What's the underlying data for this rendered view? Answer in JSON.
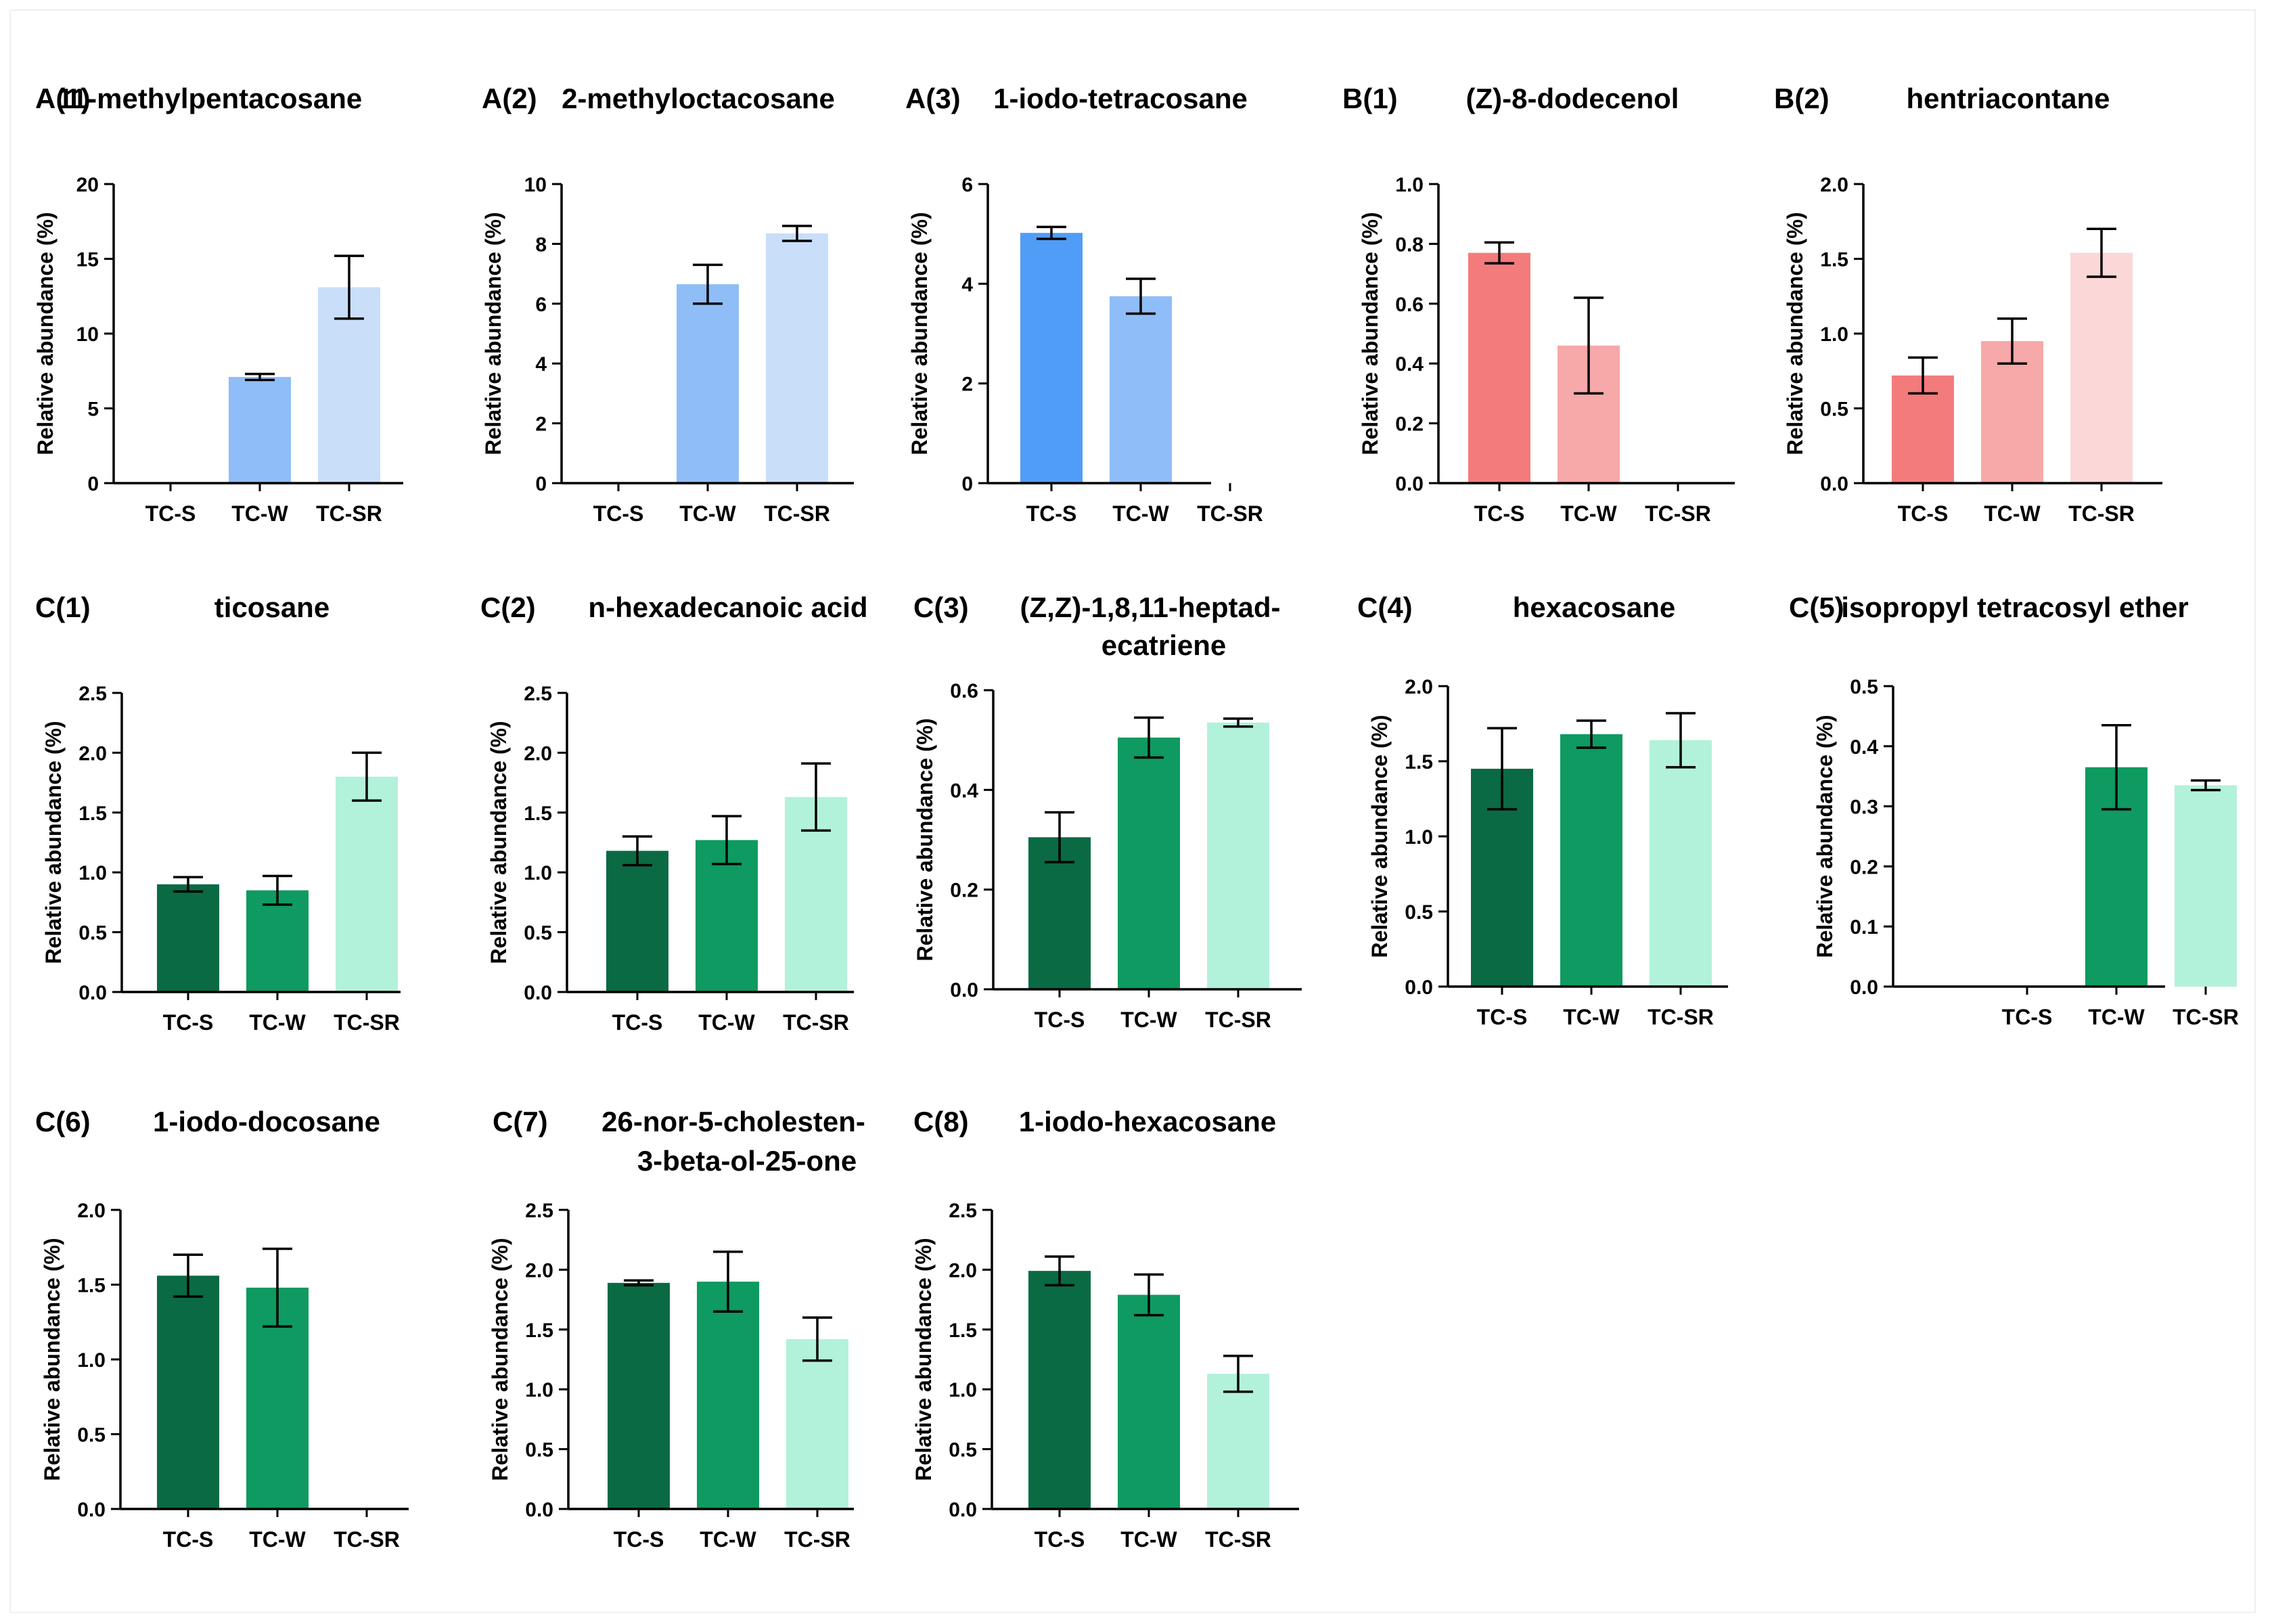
{
  "chart_data": [
    {
      "panel": "A(1)",
      "title": "11-methylpentacosane",
      "type": "bar",
      "categories": [
        "TC-S",
        "TC-W",
        "TC-SR"
      ],
      "values": [
        0,
        7.1,
        13.1
      ],
      "errors": [
        0,
        0.2,
        2.1
      ],
      "colors": [
        "#4f9df7",
        "#8fbdf7",
        "#c9def9"
      ],
      "ylabel": "Relative abundance (%)",
      "ylim": [
        0,
        20
      ],
      "yticks": [
        "0",
        "5",
        "10",
        "15",
        "20"
      ]
    },
    {
      "panel": "A(2)",
      "title": "2-methyloctacosane",
      "type": "bar",
      "categories": [
        "TC-S",
        "TC-W",
        "TC-SR"
      ],
      "values": [
        0,
        6.65,
        8.35
      ],
      "errors": [
        0,
        0.65,
        0.25
      ],
      "colors": [
        "#4f9df7",
        "#8fbdf7",
        "#c9def9"
      ],
      "ylabel": "Relative abundance (%)",
      "ylim": [
        0,
        10
      ],
      "yticks": [
        "0",
        "2",
        "4",
        "6",
        "8",
        "10"
      ]
    },
    {
      "panel": "A(3)",
      "title": "1-iodo-tetracosane",
      "type": "bar",
      "categories": [
        "TC-S",
        "TC-W",
        "TC-SR"
      ],
      "values": [
        5.02,
        3.75,
        0
      ],
      "errors": [
        0.12,
        0.35,
        0
      ],
      "colors": [
        "#4f9df7",
        "#8fbdf7",
        "#c9def9"
      ],
      "ylabel": "Relative abundance (%)",
      "ylim": [
        0,
        6
      ],
      "yticks": [
        "0",
        "2",
        "4",
        "6"
      ]
    },
    {
      "panel": "B(1)",
      "title": "(Z)-8-dodecenol",
      "type": "bar",
      "categories": [
        "TC-S",
        "TC-W",
        "TC-SR"
      ],
      "values": [
        0.77,
        0.46,
        0
      ],
      "errors": [
        0.035,
        0.16,
        0
      ],
      "colors": [
        "#f47b7b",
        "#f7a8a8",
        "#fbd7d7"
      ],
      "ylabel": "Relative abundance (%)",
      "ylim": [
        0,
        1.0
      ],
      "yticks": [
        "0.0",
        "0.2",
        "0.4",
        "0.6",
        "0.8",
        "1.0"
      ]
    },
    {
      "panel": "B(2)",
      "title": "hentriacontane",
      "type": "bar",
      "categories": [
        "TC-S",
        "TC-W",
        "TC-SR"
      ],
      "values": [
        0.72,
        0.95,
        1.54
      ],
      "errors": [
        0.12,
        0.15,
        0.16
      ],
      "colors": [
        "#f47b7b",
        "#f7a8a8",
        "#fbd7d7"
      ],
      "ylabel": "Relative abundance (%)",
      "ylim": [
        0,
        2.0
      ],
      "yticks": [
        "0.0",
        "0.5",
        "1.0",
        "1.5",
        "2.0"
      ]
    },
    {
      "panel": "C(1)",
      "title": "ticosane",
      "type": "bar",
      "categories": [
        "TC-S",
        "TC-W",
        "TC-SR"
      ],
      "values": [
        0.9,
        0.85,
        1.8
      ],
      "errors": [
        0.06,
        0.12,
        0.2
      ],
      "colors": [
        "#0a6a43",
        "#0e9a61",
        "#b2f2da"
      ],
      "ylabel": "Relative abundance (%)",
      "ylim": [
        0,
        2.5
      ],
      "yticks": [
        "0.0",
        "0.5",
        "1.0",
        "1.5",
        "2.0",
        "2.5"
      ]
    },
    {
      "panel": "C(2)",
      "title": "n-hexadecanoic acid",
      "type": "bar",
      "categories": [
        "TC-S",
        "TC-W",
        "TC-SR"
      ],
      "values": [
        1.18,
        1.27,
        1.63
      ],
      "errors": [
        0.12,
        0.2,
        0.28
      ],
      "colors": [
        "#0a6a43",
        "#0e9a61",
        "#b2f2da"
      ],
      "ylabel": "Relative abundance (%)",
      "ylim": [
        0,
        2.5
      ],
      "yticks": [
        "0.0",
        "0.5",
        "1.0",
        "1.5",
        "2.0",
        "2.5"
      ]
    },
    {
      "panel": "C(3)",
      "title": "(Z,Z)-1,8,11-heptad-",
      "title2": "ecatriene",
      "type": "bar",
      "categories": [
        "TC-S",
        "TC-W",
        "TC-SR"
      ],
      "values": [
        0.305,
        0.505,
        0.535
      ],
      "errors": [
        0.05,
        0.04,
        0.008
      ],
      "colors": [
        "#0a6a43",
        "#0e9a61",
        "#b2f2da"
      ],
      "ylabel": "Relative abundance (%)",
      "ylim": [
        0,
        0.6
      ],
      "yticks": [
        "0.0",
        "0.2",
        "0.4",
        "0.6"
      ]
    },
    {
      "panel": "C(4)",
      "title": "hexacosane",
      "type": "bar",
      "categories": [
        "TC-S",
        "TC-W",
        "TC-SR"
      ],
      "values": [
        1.45,
        1.68,
        1.64
      ],
      "errors": [
        0.27,
        0.09,
        0.18
      ],
      "colors": [
        "#0a6a43",
        "#0e9a61",
        "#b2f2da"
      ],
      "ylabel": "Relative abundance (%)",
      "ylim": [
        0,
        2.0
      ],
      "yticks": [
        "0.0",
        "0.5",
        "1.0",
        "1.5",
        "2.0"
      ]
    },
    {
      "panel": "C(5)",
      "title": "isopropyl tetracosyl ether",
      "type": "bar",
      "categories": [
        "TC-S",
        "TC-W",
        "TC-SR"
      ],
      "values": [
        0,
        0.365,
        0.335
      ],
      "errors": [
        0,
        0.07,
        0.008
      ],
      "colors": [
        "#0a6a43",
        "#0e9a61",
        "#b2f2da"
      ],
      "ylabel": "Relative abundance (%)",
      "ylim": [
        0,
        0.5
      ],
      "yticks": [
        "0.0",
        "0.1",
        "0.2",
        "0.3",
        "0.4",
        "0.5"
      ]
    },
    {
      "panel": "C(6)",
      "title": "1-iodo-docosane",
      "type": "bar",
      "categories": [
        "TC-S",
        "TC-W",
        "TC-SR"
      ],
      "values": [
        1.56,
        1.48,
        0
      ],
      "errors": [
        0.14,
        0.26,
        0
      ],
      "colors": [
        "#0a6a43",
        "#0e9a61",
        "#b2f2da"
      ],
      "ylabel": "Relative abundance (%)",
      "ylim": [
        0,
        2.0
      ],
      "yticks": [
        "0.0",
        "0.5",
        "1.0",
        "1.5",
        "2.0"
      ]
    },
    {
      "panel": "C(7)",
      "title": "26-nor-5-cholesten-",
      "title2": "3-beta-ol-25-one",
      "type": "bar",
      "categories": [
        "TC-S",
        "TC-W",
        "TC-SR"
      ],
      "values": [
        1.89,
        1.9,
        1.42
      ],
      "errors": [
        0.02,
        0.25,
        0.18
      ],
      "colors": [
        "#0a6a43",
        "#0e9a61",
        "#b2f2da"
      ],
      "ylabel": "Relative abundance (%)",
      "ylim": [
        0,
        2.5
      ],
      "yticks": [
        "0.0",
        "0.5",
        "1.0",
        "1.5",
        "2.0",
        "2.5"
      ]
    },
    {
      "panel": "C(8)",
      "title": "1-iodo-hexacosane",
      "type": "bar",
      "categories": [
        "TC-S",
        "TC-W",
        "TC-SR"
      ],
      "values": [
        1.99,
        1.79,
        1.13
      ],
      "errors": [
        0.12,
        0.17,
        0.15
      ],
      "colors": [
        "#0a6a43",
        "#0e9a61",
        "#b2f2da"
      ],
      "ylabel": "Relative abundance (%)",
      "ylim": [
        0,
        2.5
      ],
      "yticks": [
        "0.0",
        "0.5",
        "1.0",
        "1.5",
        "2.0",
        "2.5"
      ]
    }
  ]
}
